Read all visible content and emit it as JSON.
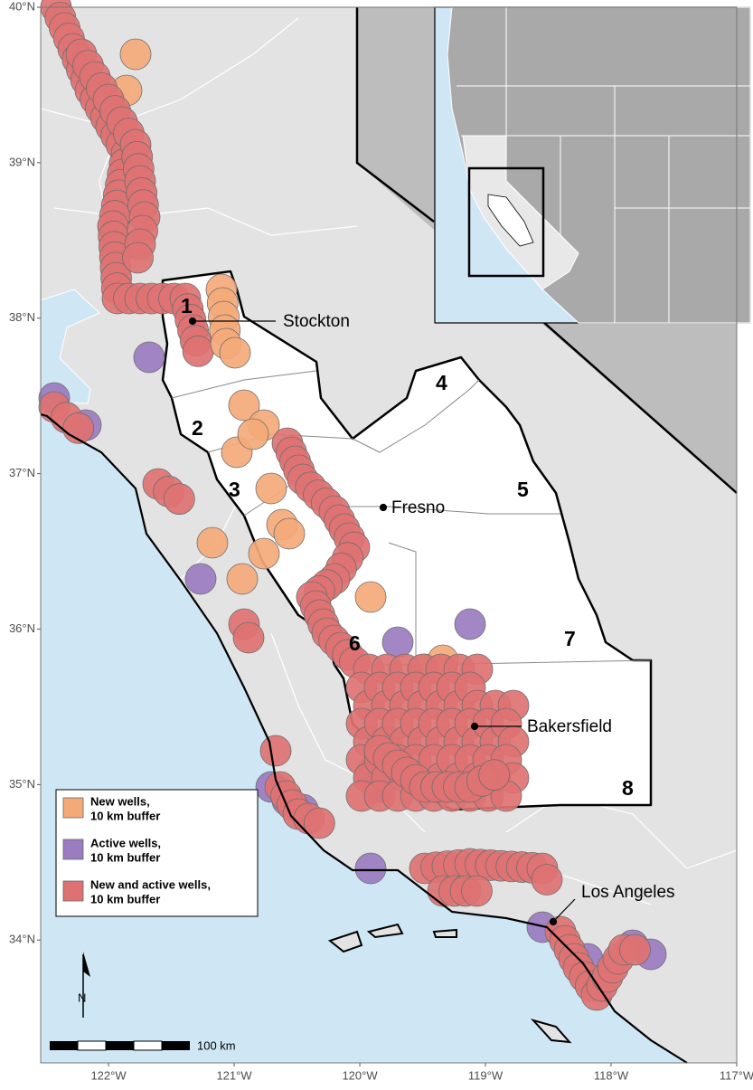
{
  "map": {
    "xlim": [
      -122.54,
      -117
    ],
    "ylim": [
      33.21,
      40
    ],
    "xticks": [
      {
        "value": -122,
        "label": "122°W"
      },
      {
        "value": -121,
        "label": "121°W"
      },
      {
        "value": -120,
        "label": "120°W"
      },
      {
        "value": -119,
        "label": "119°W"
      },
      {
        "value": -118,
        "label": "118°W"
      },
      {
        "value": -117,
        "label": "117°W"
      }
    ],
    "yticks": [
      {
        "value": 34,
        "label": "34°N"
      },
      {
        "value": 35,
        "label": "35°N"
      },
      {
        "value": 36,
        "label": "36°N"
      },
      {
        "value": 37,
        "label": "37°N"
      },
      {
        "value": 38,
        "label": "38°N"
      },
      {
        "value": 39,
        "label": "39°N"
      },
      {
        "value": 40,
        "label": "40°N"
      }
    ]
  },
  "places": [
    "Stockton",
    "Fresno",
    "Bakersfield",
    "Los Angeles"
  ],
  "regions": [
    "1",
    "2",
    "3",
    "4",
    "5",
    "6",
    "7",
    "8"
  ],
  "legend": [
    {
      "lines": [
        "New wells,",
        "10 km buffer"
      ],
      "color": "#f4aa78"
    },
    {
      "lines": [
        "Active wells,",
        "10 km buffer"
      ],
      "color": "#9a7cc0"
    },
    {
      "lines": [
        "New and active wells,",
        "10 km buffer"
      ],
      "color": "#de7272"
    }
  ],
  "scale_bar": "100 km",
  "north": "N"
}
